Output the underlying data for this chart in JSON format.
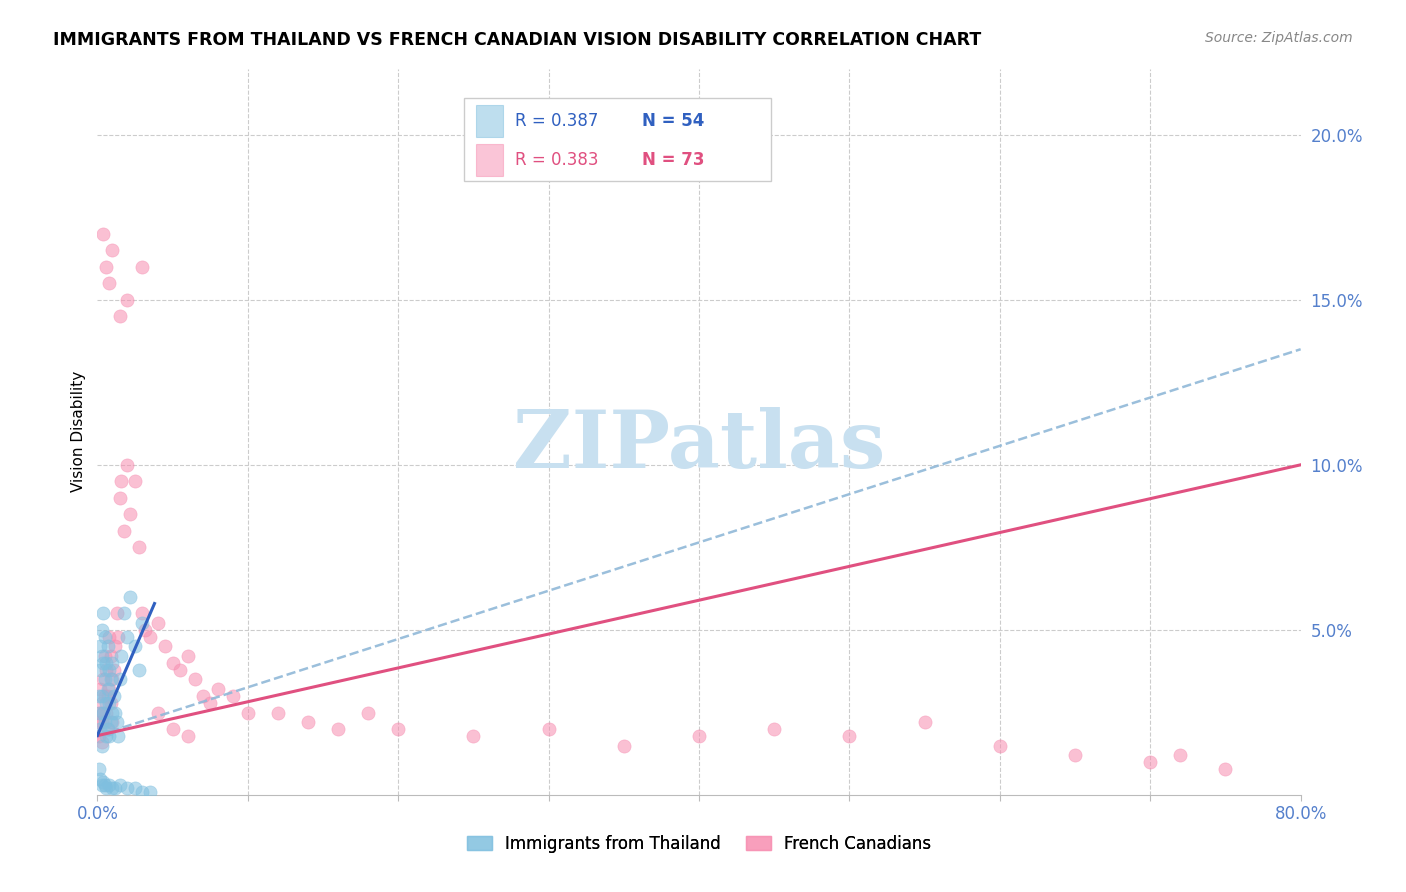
{
  "title": "IMMIGRANTS FROM THAILAND VS FRENCH CANADIAN VISION DISABILITY CORRELATION CHART",
  "source": "Source: ZipAtlas.com",
  "ylabel": "Vision Disability",
  "x_min": 0.0,
  "x_max": 0.8,
  "y_min": 0.0,
  "y_max": 0.22,
  "thai_scatter_color": "#7fbfdf",
  "french_scatter_color": "#f78db0",
  "thai_line_color": "#3060c0",
  "french_line_color": "#e05080",
  "thai_dashed_color": "#90b8d8",
  "grid_color": "#cccccc",
  "watermark_color": "#c8e0f0",
  "axis_label_color": "#5580cc",
  "r_thai": 0.387,
  "n_thai": 54,
  "r_french": 0.383,
  "n_french": 73,
  "legend_label_thai": "Immigrants from Thailand",
  "legend_label_french": "French Canadians",
  "thai_scatter_x": [
    0.001,
    0.001,
    0.002,
    0.002,
    0.002,
    0.003,
    0.003,
    0.003,
    0.003,
    0.004,
    0.004,
    0.004,
    0.005,
    0.005,
    0.005,
    0.006,
    0.006,
    0.006,
    0.007,
    0.007,
    0.007,
    0.008,
    0.008,
    0.008,
    0.009,
    0.009,
    0.01,
    0.01,
    0.011,
    0.012,
    0.013,
    0.014,
    0.015,
    0.016,
    0.018,
    0.02,
    0.022,
    0.025,
    0.028,
    0.03,
    0.001,
    0.002,
    0.003,
    0.004,
    0.005,
    0.006,
    0.008,
    0.01,
    0.012,
    0.015,
    0.02,
    0.025,
    0.03,
    0.035
  ],
  "thai_scatter_y": [
    0.03,
    0.025,
    0.045,
    0.038,
    0.02,
    0.05,
    0.042,
    0.03,
    0.015,
    0.055,
    0.04,
    0.025,
    0.048,
    0.035,
    0.022,
    0.04,
    0.028,
    0.018,
    0.045,
    0.032,
    0.02,
    0.038,
    0.028,
    0.018,
    0.035,
    0.022,
    0.04,
    0.025,
    0.03,
    0.025,
    0.022,
    0.018,
    0.035,
    0.042,
    0.055,
    0.048,
    0.06,
    0.045,
    0.038,
    0.052,
    0.008,
    0.005,
    0.003,
    0.004,
    0.003,
    0.002,
    0.003,
    0.002,
    0.002,
    0.003,
    0.002,
    0.002,
    0.001,
    0.001
  ],
  "french_scatter_x": [
    0.001,
    0.001,
    0.002,
    0.002,
    0.003,
    0.003,
    0.003,
    0.004,
    0.004,
    0.005,
    0.005,
    0.006,
    0.006,
    0.007,
    0.007,
    0.008,
    0.008,
    0.009,
    0.009,
    0.01,
    0.01,
    0.011,
    0.012,
    0.013,
    0.014,
    0.015,
    0.016,
    0.018,
    0.02,
    0.022,
    0.025,
    0.028,
    0.03,
    0.032,
    0.035,
    0.04,
    0.045,
    0.05,
    0.055,
    0.06,
    0.065,
    0.07,
    0.075,
    0.08,
    0.09,
    0.1,
    0.12,
    0.14,
    0.16,
    0.18,
    0.2,
    0.25,
    0.3,
    0.35,
    0.4,
    0.45,
    0.5,
    0.55,
    0.6,
    0.65,
    0.7,
    0.72,
    0.75,
    0.004,
    0.006,
    0.008,
    0.01,
    0.015,
    0.02,
    0.03,
    0.04,
    0.05,
    0.06
  ],
  "french_scatter_y": [
    0.022,
    0.018,
    0.032,
    0.025,
    0.028,
    0.022,
    0.016,
    0.035,
    0.025,
    0.042,
    0.03,
    0.038,
    0.025,
    0.03,
    0.02,
    0.048,
    0.032,
    0.042,
    0.028,
    0.035,
    0.022,
    0.038,
    0.045,
    0.055,
    0.048,
    0.09,
    0.095,
    0.08,
    0.1,
    0.085,
    0.095,
    0.075,
    0.055,
    0.05,
    0.048,
    0.052,
    0.045,
    0.04,
    0.038,
    0.042,
    0.035,
    0.03,
    0.028,
    0.032,
    0.03,
    0.025,
    0.025,
    0.022,
    0.02,
    0.025,
    0.02,
    0.018,
    0.02,
    0.015,
    0.018,
    0.02,
    0.018,
    0.022,
    0.015,
    0.012,
    0.01,
    0.012,
    0.008,
    0.17,
    0.16,
    0.155,
    0.165,
    0.145,
    0.15,
    0.16,
    0.025,
    0.02,
    0.018
  ],
  "thai_trend_x": [
    0.0,
    0.038
  ],
  "thai_trend_y": [
    0.018,
    0.058
  ],
  "thai_ext_trend_x": [
    0.0,
    0.8
  ],
  "thai_ext_trend_y": [
    0.018,
    0.135
  ],
  "french_trend_x": [
    0.0,
    0.8
  ],
  "french_trend_y": [
    0.018,
    0.1
  ]
}
